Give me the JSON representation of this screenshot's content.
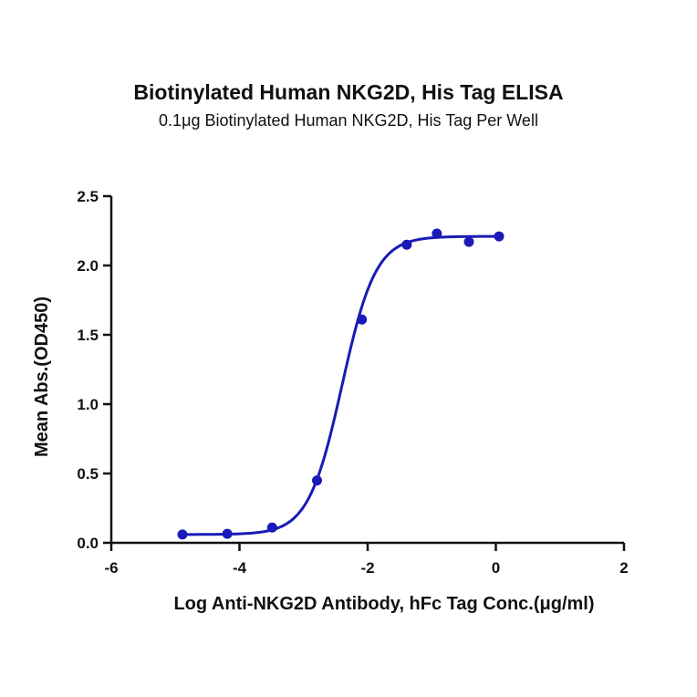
{
  "chart_data": {
    "type": "scatter",
    "title": "Biotinylated Human NKG2D, His Tag ELISA",
    "subtitle": "0.1μg Biotinylated Human NKG2D, His Tag Per Well",
    "xlabel": "Log Anti-NKG2D Antibody, hFc Tag Conc.(μg/ml)",
    "ylabel": "Mean Abs.(OD450)",
    "xlim": [
      -6,
      2
    ],
    "ylim": [
      0,
      2.5
    ],
    "xticks": [
      "-6",
      "-4",
      "-2",
      "0",
      "2"
    ],
    "yticks": [
      "0.0",
      "0.5",
      "1.0",
      "1.5",
      "2.0",
      "2.5"
    ],
    "grid": false,
    "series": [
      {
        "color": "#1a1ab8",
        "x": [
          -4.89,
          -4.19,
          -3.49,
          -2.79,
          -2.09,
          -1.39,
          -0.92,
          -0.42,
          0.05
        ],
        "y": [
          0.06,
          0.065,
          0.11,
          0.45,
          1.61,
          2.15,
          2.23,
          2.17,
          2.21
        ],
        "fit": {
          "model": "4PL",
          "bottom": 0.06,
          "top": 2.21,
          "logEC50": -2.4,
          "hill": 1.65
        }
      }
    ]
  }
}
